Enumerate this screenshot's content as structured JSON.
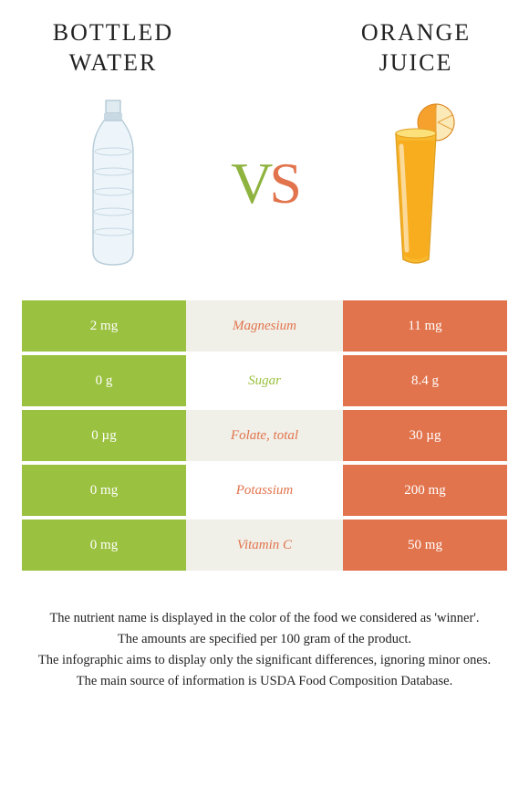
{
  "colors": {
    "left": "#9ac13f",
    "right": "#e2744d",
    "mid_odd": "#f0efe8",
    "mid_even": "#ffffff",
    "mid_text_left_win": "#9ac13f",
    "mid_text_right_win": "#e2744d",
    "title_text": "#222222"
  },
  "header": {
    "left_title_line1": "BOTTLED",
    "left_title_line2": "WATER",
    "right_title_line1": "ORANGE",
    "right_title_line2": "JUICE",
    "vs_v": "V",
    "vs_s": "S"
  },
  "icons": {
    "left": "water-bottle",
    "right": "orange-juice-glass"
  },
  "rows": [
    {
      "left": "2 mg",
      "label": "Magnesium",
      "right": "11 mg",
      "winner": "right"
    },
    {
      "left": "0 g",
      "label": "Sugar",
      "right": "8.4 g",
      "winner": "left"
    },
    {
      "left": "0 µg",
      "label": "Folate, total",
      "right": "30 µg",
      "winner": "right"
    },
    {
      "left": "0 mg",
      "label": "Potassium",
      "right": "200 mg",
      "winner": "right"
    },
    {
      "left": "0 mg",
      "label": "Vitamin C",
      "right": "50 mg",
      "winner": "right"
    }
  ],
  "footnotes": [
    "The nutrient name is displayed in the color of the food we considered as 'winner'.",
    "The amounts are specified per 100 gram of the product.",
    "The infographic aims to display only the significant differences, ignoring minor ones.",
    "The main source of information is USDA Food Composition Database."
  ]
}
